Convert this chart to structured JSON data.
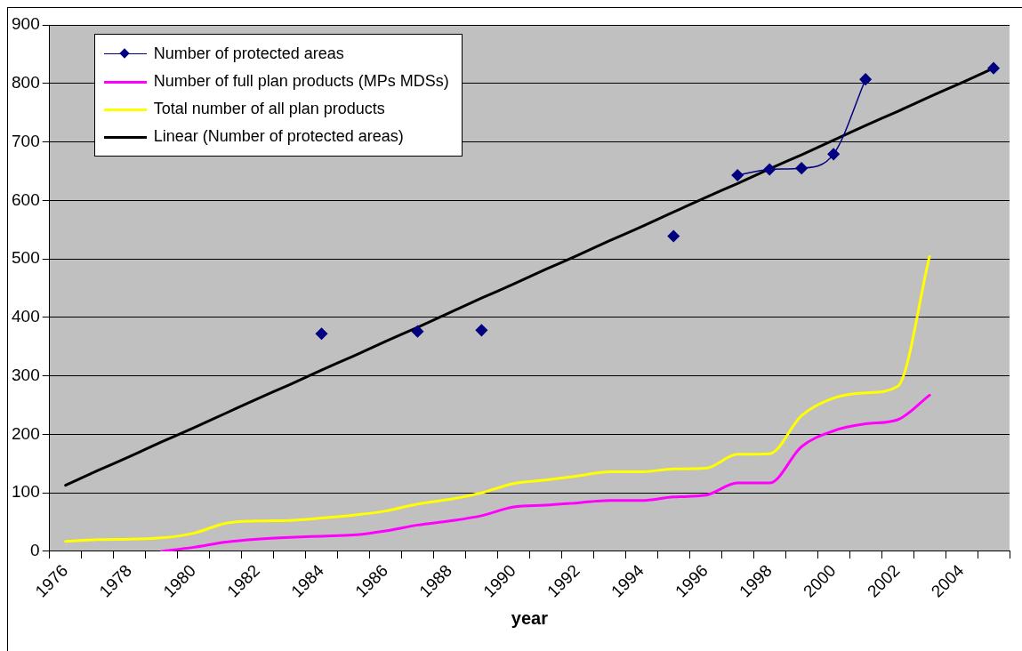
{
  "chart_data": {
    "type": "line",
    "xlabel": "year",
    "categories": [
      "1976",
      null,
      "1978",
      null,
      "1980",
      null,
      "1982",
      null,
      "1984",
      null,
      "1986",
      null,
      "1988",
      null,
      "1990",
      null,
      "1992",
      null,
      "1994",
      null,
      "1996",
      null,
      "1998",
      null,
      "2000",
      null,
      "2002",
      null,
      "2004",
      null
    ],
    "series": [
      {
        "name": "Number of protected areas",
        "color": "#000080",
        "marker": "diamond",
        "values": [
          null,
          null,
          null,
          null,
          null,
          null,
          null,
          null,
          372,
          null,
          null,
          376,
          null,
          378,
          null,
          null,
          null,
          null,
          null,
          539,
          null,
          643,
          653,
          655,
          679,
          807,
          null,
          null,
          null,
          826
        ]
      },
      {
        "name": "Number of full plan products (MPs MDSs)",
        "color": "#ff00ff",
        "marker": "none",
        "values": [
          null,
          null,
          null,
          0,
          7,
          16,
          21,
          24,
          26,
          28,
          35,
          45,
          52,
          61,
          76,
          79,
          83,
          87,
          87,
          93,
          96,
          117,
          117,
          179,
          206,
          218,
          225,
          267,
          null,
          null
        ]
      },
      {
        "name": "Total number of all plan products",
        "color": "#ffff00",
        "marker": "none",
        "values": [
          17,
          20,
          21,
          23,
          31,
          48,
          52,
          53,
          57,
          62,
          69,
          81,
          89,
          100,
          116,
          122,
          129,
          136,
          136,
          141,
          142,
          166,
          167,
          232,
          262,
          271,
          282,
          504,
          null,
          null
        ]
      },
      {
        "name": "Linear (Number of protected areas)",
        "color": "#000000",
        "marker": "none",
        "values": [
          113,
          138,
          162,
          187,
          211,
          236,
          261,
          285,
          310,
          334,
          359,
          383,
          408,
          433,
          457,
          482,
          506,
          531,
          555,
          580,
          605,
          629,
          654,
          678,
          703,
          728,
          752,
          777,
          801,
          826
        ]
      }
    ],
    "ylim": [
      0,
      900
    ],
    "yticks": [
      0,
      100,
      200,
      300,
      400,
      500,
      600,
      700,
      800,
      900
    ],
    "grid": "y",
    "legend": "top left"
  }
}
